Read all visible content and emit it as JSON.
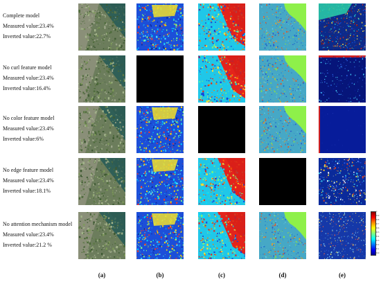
{
  "rows": [
    {
      "lines": [
        "Complete model",
        "Measured  value:23.4%",
        "Inverted value:22.7%"
      ],
      "panels": [
        "rgb",
        "edge",
        "color",
        "curl",
        "attention-speckle"
      ]
    },
    {
      "lines": [
        "No curl feature model",
        "Measured  value:23.4%",
        "Inverted value:16.4%"
      ],
      "panels": [
        "rgb",
        "black",
        "color",
        "curl",
        "attention-dark"
      ]
    },
    {
      "lines": [
        "No color feature model",
        "Measured  value:23.4%",
        "Inverted value:6%"
      ],
      "panels": [
        "rgb",
        "edge",
        "black",
        "curl",
        "attention-flat"
      ]
    },
    {
      "lines": [
        "No edge feature model",
        "Measured  value:23.4%",
        "Inverted value:18.1%"
      ],
      "panels": [
        "rgb",
        "edge",
        "color",
        "black",
        "attention-mid"
      ]
    },
    {
      "lines": [
        "No attention mechanism model",
        "Measured  value:23.4%",
        "Inverted value:21.2 %"
      ],
      "panels": [
        "rgb",
        "edge",
        "color",
        "curl",
        "attention-texture"
      ]
    }
  ],
  "column_labels": [
    "(a)",
    "(b)",
    "(c)",
    "(d)",
    "(e)"
  ],
  "colorbar": {
    "ticks": [
      "1",
      "0.9",
      "0.8",
      "0.7",
      "0.6",
      "0.5",
      "0.4",
      "0.3",
      "0.2",
      "0.1",
      "0.0"
    ],
    "colors": [
      "#8b0000",
      "#ff0000",
      "#ff8c00",
      "#ffff00",
      "#7fff7f",
      "#00ffff",
      "#0080ff",
      "#0000ff",
      "#00008b"
    ]
  }
}
